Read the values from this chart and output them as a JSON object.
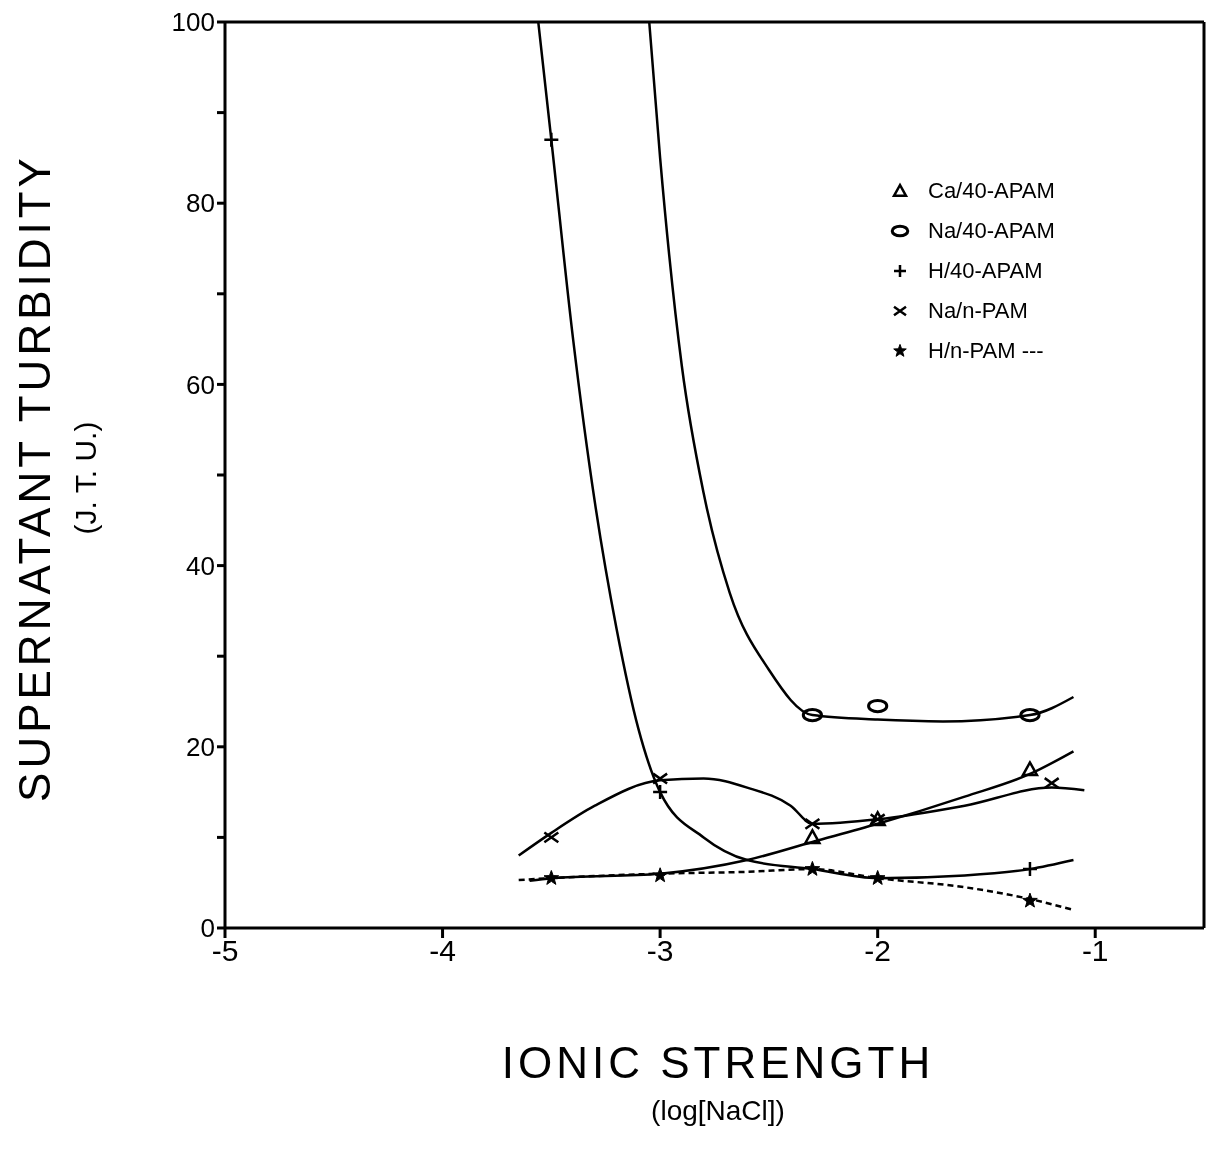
{
  "chart_data": {
    "type": "scatter",
    "xlabel": "IONIC STRENGTH\n(log[NaCl])",
    "ylabel": "SUPERNATANT TURBIDITY\n(J. T. U.)",
    "xlim": [
      -5,
      -0.5
    ],
    "xticks": [
      -5,
      -4,
      -3,
      -2,
      -1
    ],
    "ylim": [
      0,
      100
    ],
    "yticks": [
      0,
      {
        "value": 10,
        "label": null
      },
      20,
      {
        "value": 30,
        "label": null
      },
      40,
      {
        "value": 50,
        "label": null
      },
      60,
      {
        "value": 70,
        "label": null
      },
      80,
      {
        "value": 90,
        "label": null
      },
      100
    ],
    "grid": false,
    "legend": "top right",
    "series": [
      {
        "name": "Ca/40-APAM",
        "color": "#000000",
        "marker": "triangle",
        "x": [
          -2.3,
          -2,
          -1.3
        ],
        "values": [
          10,
          12,
          17.5
        ]
      },
      {
        "name": "Na/40-APAM",
        "color": "#000000",
        "marker": "circle",
        "x": [
          -2.3,
          -2,
          -1.3
        ],
        "values": [
          23.5,
          24.5,
          23.5
        ]
      },
      {
        "name": "H/40-APAM",
        "color": "#000000",
        "marker": "cross",
        "x": [
          -3.5,
          -3,
          -1.3
        ],
        "values": [
          87,
          15,
          6.5
        ]
      },
      {
        "name": "Na/n-PAM",
        "color": "#000000",
        "marker": "x",
        "x": [
          -3.5,
          -3,
          -2.3,
          -2,
          -1.2
        ],
        "values": [
          10,
          16.5,
          11.5,
          12,
          16
        ]
      },
      {
        "name": "H/n-PAM ---",
        "color": "#000000",
        "marker": "star",
        "x": [
          -3.5,
          -3,
          -2.3,
          -2,
          -1.3
        ],
        "values": [
          5.5,
          5.8,
          6.5,
          5.5,
          3
        ]
      },
      {
        "type": "line",
        "color": "#000000",
        "line_style": "solid",
        "x": [
          -3.05,
          -3.0,
          -2.9,
          -2.8,
          -2.68,
          -2.5,
          -2.3,
          -2.0,
          -1.7,
          -1.3,
          -1.1
        ],
        "values": [
          100,
          85,
          62,
          48,
          37,
          28.5,
          23.5,
          23,
          22.8,
          23.5,
          25.5
        ]
      },
      {
        "type": "line",
        "color": "#000000",
        "line_style": "solid",
        "x": [
          -3.56,
          -3.5,
          -3.4,
          -3.3,
          -3.2,
          -3.1,
          -3.0,
          -2.8,
          -2.6,
          -2.3,
          -2.0,
          -1.6,
          -1.3,
          -1.1
        ],
        "values": [
          100,
          87,
          65,
          47,
          33,
          22,
          15,
          10,
          7.5,
          6.5,
          5.5,
          5.8,
          6.5,
          7.5
        ]
      },
      {
        "type": "line",
        "color": "#000000",
        "line_style": "solid",
        "x": [
          -3.65,
          -3.5,
          -3.3,
          -3.0,
          -2.8,
          -2.6,
          -2.4,
          -2.3,
          -2.0,
          -1.6,
          -1.2,
          -1.05
        ],
        "values": [
          8,
          10.5,
          13.5,
          16.3,
          16.5,
          15.5,
          13.5,
          11.5,
          12,
          13.5,
          15.5,
          15.2
        ]
      },
      {
        "type": "line",
        "color": "#000000",
        "line_style": "solid",
        "x": [
          -3.6,
          -3.5,
          -3.0,
          -2.6,
          -2.3,
          -2.0,
          -1.6,
          -1.3,
          -1.1
        ],
        "values": [
          5.2,
          5.5,
          6,
          7.5,
          9.5,
          11.5,
          14.5,
          17,
          19.5
        ]
      },
      {
        "type": "line",
        "color": "#000000",
        "line_style": "dashed",
        "x": [
          -3.65,
          -3.5,
          -3.0,
          -2.6,
          -2.3,
          -2.0,
          -1.6,
          -1.3,
          -1.1
        ],
        "values": [
          5.3,
          5.5,
          6,
          6.2,
          6.5,
          5.5,
          4.5,
          3.2,
          2
        ]
      }
    ]
  }
}
